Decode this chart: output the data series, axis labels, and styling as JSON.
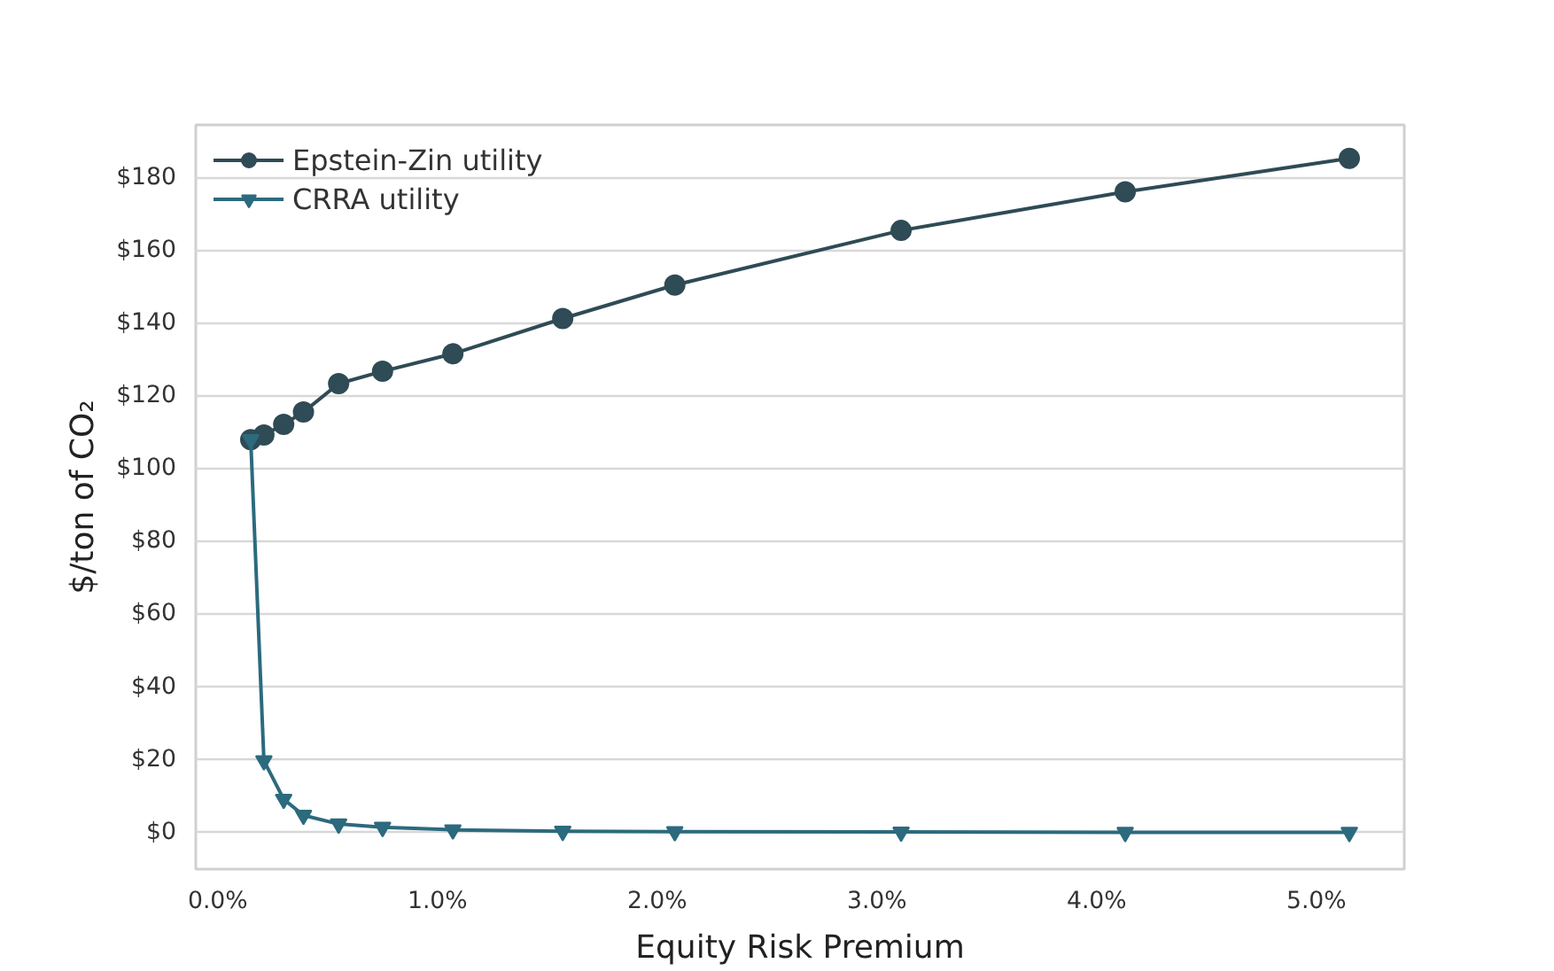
{
  "chart_data": {
    "type": "line",
    "xlabel": "Equity Risk Premium",
    "ylabel": "$/ton of CO₂",
    "xlim": [
      -0.1,
      5.4
    ],
    "ylim": [
      -10,
      194.5
    ],
    "xticks": [
      {
        "value": 0,
        "label": "0.0%"
      },
      {
        "value": 1,
        "label": "1.0%"
      },
      {
        "value": 2,
        "label": "2.0%"
      },
      {
        "value": 3,
        "label": "3.0%"
      },
      {
        "value": 4,
        "label": "4.0%"
      },
      {
        "value": 5,
        "label": "5.0%"
      }
    ],
    "yticks": [
      {
        "value": 0,
        "label": "$0"
      },
      {
        "value": 20,
        "label": "$20"
      },
      {
        "value": 40,
        "label": "$40"
      },
      {
        "value": 60,
        "label": "$60"
      },
      {
        "value": 80,
        "label": "$80"
      },
      {
        "value": 100,
        "label": "$100"
      },
      {
        "value": 120,
        "label": "$120"
      },
      {
        "value": 140,
        "label": "$140"
      },
      {
        "value": 160,
        "label": "$160"
      },
      {
        "value": 180,
        "label": "$180"
      }
    ],
    "x": [
      0.15,
      0.21,
      0.3,
      0.39,
      0.55,
      0.75,
      1.07,
      1.57,
      2.08,
      3.11,
      4.13,
      5.15
    ],
    "series": [
      {
        "name": "Epstein-Zin utility",
        "color": "#2f4b55",
        "marker": "circle",
        "values": [
          108,
          109.3,
          112.2,
          115.6,
          123.4,
          126.8,
          131.6,
          141.3,
          150.5,
          165.5,
          176.1,
          185.3
        ]
      },
      {
        "name": "CRRA utility",
        "color": "#2c6a7e",
        "marker": "triangle",
        "values": [
          108,
          19.8,
          9.2,
          4.8,
          2.4,
          1.5,
          0.8,
          0.4,
          0.3,
          0.2,
          0.1,
          0.1
        ]
      }
    ],
    "grid": "y",
    "legend": "top left",
    "line_style": "solid"
  }
}
